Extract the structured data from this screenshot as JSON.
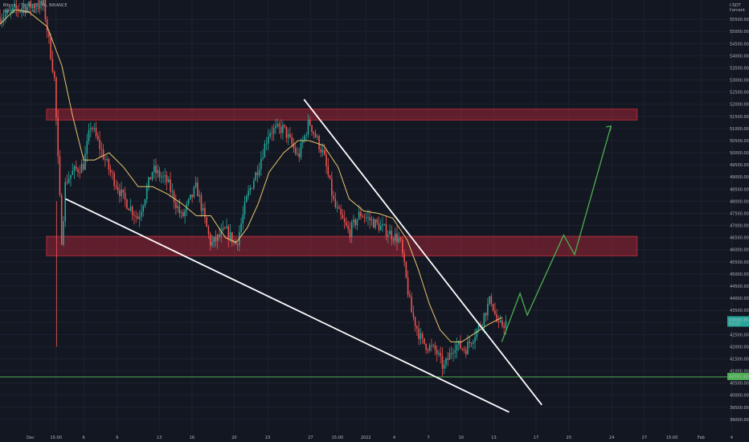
{
  "legend": {
    "symbol_line": "Bitcoin / TetherUS, 4h, BINANCE",
    "ma_line": "MA (21, close, 0)"
  },
  "axis_header": {
    "currency": "USDT",
    "mode": "Percent"
  },
  "colors": {
    "background": "#131722",
    "up": "#26a69a",
    "down": "#ef5350",
    "ma": "#e6c66b",
    "zone_fill": "rgba(200,40,60,0.42)",
    "zone_border": "#b02a3a",
    "trendline": "#ffffff",
    "support": "#4caf50",
    "projection": "#4caf50"
  },
  "chart_data": {
    "type": "candlestick",
    "title": "",
    "xlabel": "",
    "ylabel": "",
    "ylim": [
      38500,
      56300
    ],
    "y_ticks": [
      39000,
      39500,
      40000,
      40500,
      41000,
      41500,
      42000,
      42500,
      43000,
      43500,
      44000,
      44500,
      45000,
      45500,
      46000,
      46500,
      47000,
      47500,
      48000,
      48500,
      49000,
      49500,
      50000,
      50500,
      51000,
      51500,
      52000,
      52500,
      53000,
      53500,
      54000,
      54500,
      55000,
      55500
    ],
    "x_ticks": [
      {
        "label": "Dec",
        "frac": 0.042
      },
      {
        "label": "15:00",
        "frac": 0.077
      },
      {
        "label": "6",
        "frac": 0.115
      },
      {
        "label": "9",
        "frac": 0.161
      },
      {
        "label": "13",
        "frac": 0.219
      },
      {
        "label": "16",
        "frac": 0.264
      },
      {
        "label": "20",
        "frac": 0.322
      },
      {
        "label": "23",
        "frac": 0.368
      },
      {
        "label": "27",
        "frac": 0.427
      },
      {
        "label": "15:00",
        "frac": 0.464
      },
      {
        "label": "2022",
        "frac": 0.503
      },
      {
        "label": "4",
        "frac": 0.542
      },
      {
        "label": "7",
        "frac": 0.589
      },
      {
        "label": "10",
        "frac": 0.634
      },
      {
        "label": "13",
        "frac": 0.679
      },
      {
        "label": "17",
        "frac": 0.737
      },
      {
        "label": "20",
        "frac": 0.782
      },
      {
        "label": "24",
        "frac": 0.841
      },
      {
        "label": "27",
        "frac": 0.886
      },
      {
        "label": "15:00",
        "frac": 0.924
      },
      {
        "label": "Feb",
        "frac": 0.964
      },
      {
        "label": "4",
        "frac": 1.006
      }
    ],
    "price_path": [
      [
        0.0,
        55600
      ],
      [
        0.03,
        56000
      ],
      [
        0.06,
        56100
      ],
      [
        0.075,
        53000
      ],
      [
        0.08,
        49500
      ],
      [
        0.085,
        46300
      ],
      [
        0.09,
        48800
      ],
      [
        0.1,
        49200
      ],
      [
        0.115,
        49500
      ],
      [
        0.125,
        51200
      ],
      [
        0.135,
        50400
      ],
      [
        0.15,
        49300
      ],
      [
        0.17,
        48100
      ],
      [
        0.19,
        47300
      ],
      [
        0.21,
        49300
      ],
      [
        0.23,
        48800
      ],
      [
        0.25,
        47300
      ],
      [
        0.27,
        48600
      ],
      [
        0.29,
        46200
      ],
      [
        0.31,
        46800
      ],
      [
        0.325,
        46200
      ],
      [
        0.34,
        48200
      ],
      [
        0.355,
        49400
      ],
      [
        0.37,
        50900
      ],
      [
        0.39,
        51000
      ],
      [
        0.41,
        49800
      ],
      [
        0.425,
        51300
      ],
      [
        0.445,
        49900
      ],
      [
        0.46,
        47800
      ],
      [
        0.48,
        46700
      ],
      [
        0.495,
        47500
      ],
      [
        0.51,
        47200
      ],
      [
        0.53,
        46800
      ],
      [
        0.55,
        46400
      ],
      [
        0.565,
        43500
      ],
      [
        0.58,
        42200
      ],
      [
        0.6,
        41800
      ],
      [
        0.61,
        41100
      ],
      [
        0.625,
        42100
      ],
      [
        0.64,
        41900
      ],
      [
        0.66,
        42900
      ],
      [
        0.675,
        44000
      ],
      [
        0.685,
        42800
      ],
      [
        0.695,
        43000
      ]
    ],
    "ma_path": [
      [
        0.0,
        55300
      ],
      [
        0.02,
        55900
      ],
      [
        0.04,
        55800
      ],
      [
        0.065,
        55200
      ],
      [
        0.085,
        53600
      ],
      [
        0.1,
        51500
      ],
      [
        0.115,
        49700
      ],
      [
        0.13,
        49700
      ],
      [
        0.15,
        50000
      ],
      [
        0.17,
        49400
      ],
      [
        0.19,
        48600
      ],
      [
        0.21,
        48600
      ],
      [
        0.23,
        48300
      ],
      [
        0.25,
        47900
      ],
      [
        0.27,
        47400
      ],
      [
        0.29,
        47400
      ],
      [
        0.31,
        46500
      ],
      [
        0.325,
        46300
      ],
      [
        0.34,
        46900
      ],
      [
        0.355,
        47900
      ],
      [
        0.37,
        49200
      ],
      [
        0.39,
        50000
      ],
      [
        0.41,
        50500
      ],
      [
        0.425,
        50500
      ],
      [
        0.445,
        50300
      ],
      [
        0.465,
        49400
      ],
      [
        0.48,
        48100
      ],
      [
        0.5,
        47600
      ],
      [
        0.52,
        47500
      ],
      [
        0.54,
        47300
      ],
      [
        0.56,
        46400
      ],
      [
        0.575,
        45200
      ],
      [
        0.59,
        43800
      ],
      [
        0.605,
        42700
      ],
      [
        0.62,
        42200
      ],
      [
        0.635,
        42200
      ],
      [
        0.65,
        42500
      ],
      [
        0.67,
        42900
      ],
      [
        0.69,
        43200
      ]
    ],
    "resistance_zone": [
      51350,
      51800
    ],
    "support_zone": [
      45750,
      46550
    ],
    "support_line": 40755.4,
    "trendline_upper": [
      [
        0.418,
        52200
      ],
      [
        0.745,
        39600
      ]
    ],
    "trendline_lower": [
      [
        0.09,
        48100
      ],
      [
        0.7,
        39300
      ]
    ],
    "projection_path": [
      [
        0.69,
        42200
      ],
      [
        0.715,
        44200
      ],
      [
        0.725,
        43300
      ],
      [
        0.775,
        46600
      ],
      [
        0.79,
        45800
      ],
      [
        0.84,
        51100
      ]
    ],
    "price_labels": [
      {
        "value": 43090.35,
        "text": "43090.35",
        "sub": "53:07",
        "color": "#26a69a"
      },
      {
        "value": 40755.4,
        "text": "40755.40",
        "sub": "",
        "color": "#4caf50"
      }
    ]
  }
}
